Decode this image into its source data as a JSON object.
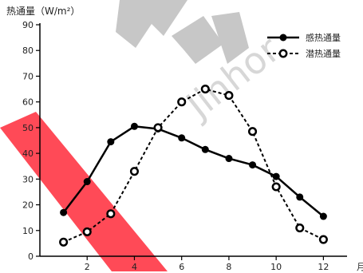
{
  "chart_data": {
    "type": "line",
    "ylabel": "热通量（W/m²）",
    "xlabel": "月",
    "x": [
      1,
      2,
      3,
      4,
      5,
      6,
      7,
      8,
      9,
      10,
      11,
      12
    ],
    "xticks": [
      2,
      4,
      6,
      8,
      10,
      12
    ],
    "xlim": [
      0,
      13
    ],
    "ylim": [
      0,
      90
    ],
    "yticks": [
      0,
      10,
      20,
      30,
      40,
      50,
      60,
      70,
      80,
      90
    ],
    "legend_position": "top-right",
    "series": [
      {
        "name": "感热通量",
        "style": "solid",
        "marker": "filled-circle",
        "values": [
          17,
          29,
          44.5,
          50.5,
          49.5,
          46,
          41.5,
          38,
          35.5,
          31,
          23,
          15.5
        ]
      },
      {
        "name": "潜热通量",
        "style": "dashed",
        "marker": "open-circle",
        "values": [
          5.5,
          9.5,
          16.5,
          33,
          50,
          60,
          65,
          62.5,
          48.5,
          27,
          11,
          6.5
        ]
      }
    ],
    "colors": {
      "line": "#000000",
      "watermark_red": "#ff2a3a",
      "watermark_gray": "#9a9a9a"
    }
  }
}
